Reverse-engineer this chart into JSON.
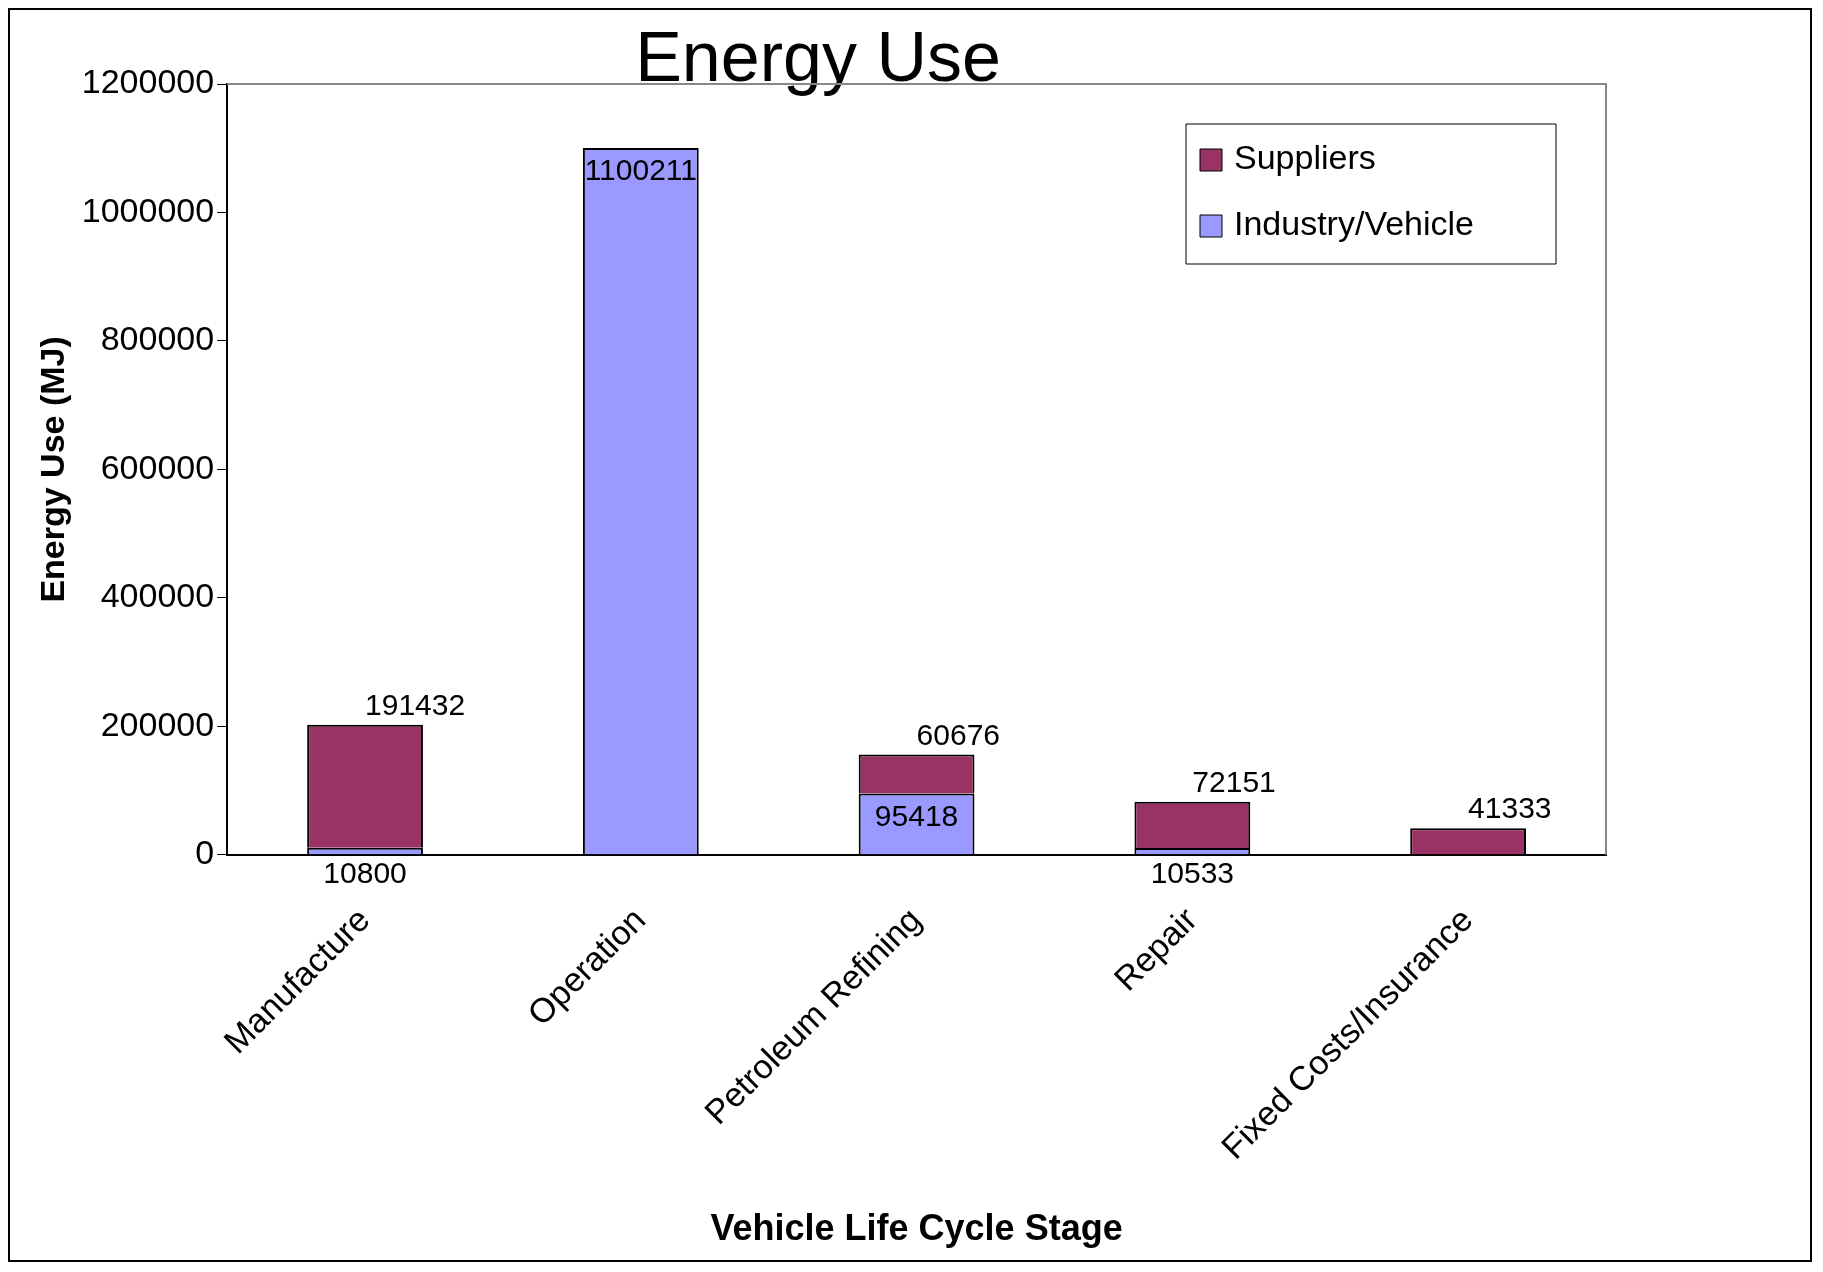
{
  "chart_data": {
    "type": "bar",
    "title": "Energy Use",
    "xlabel": "Vehicle Life Cycle Stage",
    "ylabel": "Energy Use (MJ)",
    "categories": [
      "Manufacture",
      "Operation",
      "Petroleum Refining",
      "Repair",
      "Fixed Costs/Insurance"
    ],
    "stacked": true,
    "legend": "top right",
    "grid": false,
    "data_labels": true,
    "ylim": [
      0,
      1200000
    ],
    "yticks": [
      0,
      200000,
      400000,
      600000,
      800000,
      1000000,
      1200000
    ],
    "series": [
      {
        "name": "Industry/Vehicle",
        "color": "#9999ff",
        "values": [
          10800,
          1100211,
          95418,
          10533,
          null
        ]
      },
      {
        "name": "Suppliers",
        "color": "#993366",
        "values": [
          191432,
          null,
          60676,
          72151,
          41333
        ]
      }
    ]
  }
}
